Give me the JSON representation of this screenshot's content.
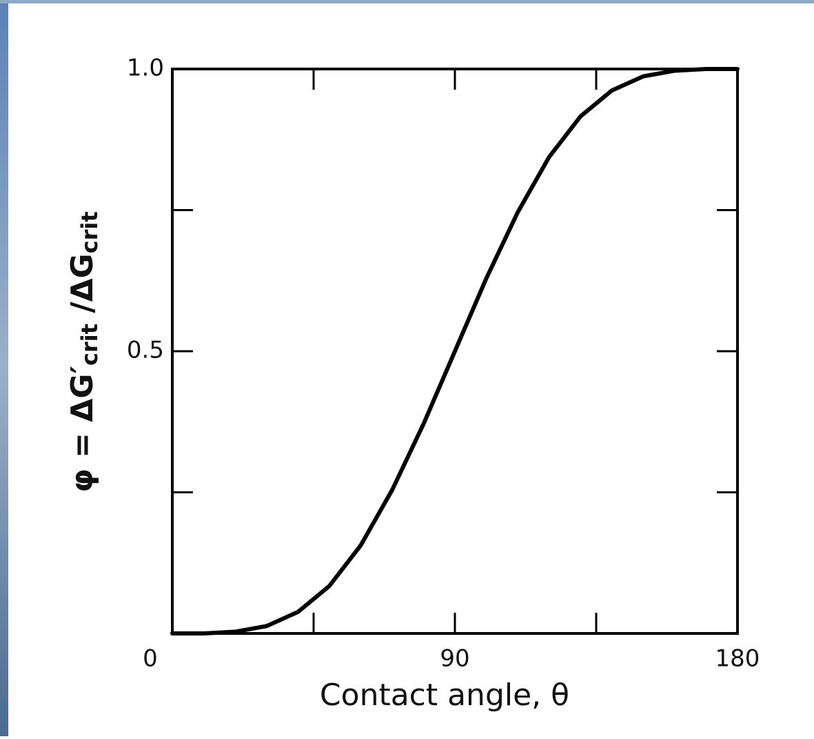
{
  "chart_data": {
    "type": "line",
    "xlabel": "Contact angle, θ",
    "ylabel": [
      "φ = ΔG′",
      "crit",
      " /ΔG",
      "crit"
    ],
    "x": [
      0,
      10,
      20,
      30,
      40,
      50,
      60,
      70,
      80,
      90,
      100,
      110,
      120,
      130,
      140,
      150,
      160,
      170,
      180
    ],
    "series": [
      {
        "color": "#000000",
        "values": [
          0,
          0,
          0.003,
          0.013,
          0.038,
          0.084,
          0.156,
          0.254,
          0.371,
          0.5,
          0.629,
          0.746,
          0.844,
          0.916,
          0.962,
          0.987,
          0.997,
          1,
          1
        ]
      }
    ],
    "xlim": [
      0,
      180
    ],
    "xticks": [
      0,
      90,
      180
    ],
    "xminorticks": [
      45,
      135
    ],
    "ylim": [
      0,
      1
    ],
    "yticks": [
      0.5,
      {
        "value": 1,
        "label": "1.0"
      }
    ],
    "yminorticks": [
      0.25,
      0.75
    ],
    "grid": false
  }
}
